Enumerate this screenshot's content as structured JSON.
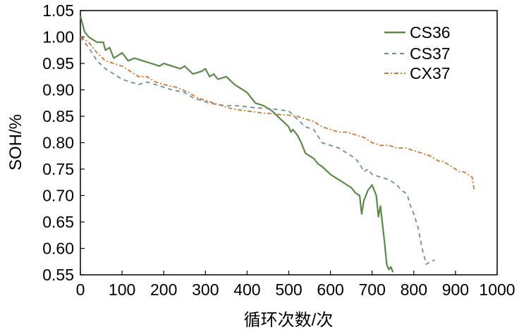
{
  "chart_data": {
    "type": "line",
    "xlabel": "循环次数/次",
    "ylabel": "SOH/%",
    "xlim": [
      0,
      1000
    ],
    "ylim": [
      0.55,
      1.05
    ],
    "x_ticks": [
      "0",
      "100",
      "200",
      "300",
      "400",
      "500",
      "600",
      "700",
      "800",
      "900",
      "1000"
    ],
    "y_ticks": [
      "0.55",
      "0.60",
      "0.65",
      "0.70",
      "0.75",
      "0.80",
      "0.85",
      "0.90",
      "0.95",
      "1.00",
      "1.05"
    ],
    "grid": false,
    "legend_position": "top-right",
    "series": [
      {
        "name": "CS36",
        "color": "#5a8a45",
        "style": "solid",
        "x": [
          0,
          10,
          20,
          40,
          55,
          60,
          70,
          80,
          90,
          100,
          115,
          130,
          150,
          170,
          190,
          200,
          220,
          240,
          250,
          270,
          290,
          300,
          310,
          320,
          330,
          350,
          370,
          380,
          400,
          420,
          440,
          460,
          480,
          500,
          505,
          510,
          520,
          530,
          540,
          550,
          560,
          570,
          580,
          600,
          610,
          620,
          640,
          650,
          660,
          670,
          675,
          680,
          690,
          700,
          710,
          715,
          720,
          730,
          735,
          740,
          745,
          750
        ],
        "y": [
          1.04,
          1.01,
          1.0,
          0.99,
          0.99,
          0.975,
          0.98,
          0.96,
          0.965,
          0.97,
          0.955,
          0.96,
          0.955,
          0.95,
          0.945,
          0.95,
          0.945,
          0.94,
          0.945,
          0.93,
          0.935,
          0.94,
          0.925,
          0.93,
          0.92,
          0.925,
          0.91,
          0.905,
          0.895,
          0.875,
          0.87,
          0.86,
          0.845,
          0.83,
          0.82,
          0.825,
          0.815,
          0.8,
          0.78,
          0.775,
          0.77,
          0.76,
          0.755,
          0.74,
          0.735,
          0.73,
          0.72,
          0.715,
          0.705,
          0.7,
          0.665,
          0.69,
          0.71,
          0.72,
          0.7,
          0.66,
          0.68,
          0.61,
          0.57,
          0.56,
          0.565,
          0.555
        ]
      },
      {
        "name": "CS37",
        "color": "#6e8e97",
        "style": "dashed",
        "x": [
          0,
          20,
          40,
          60,
          80,
          90,
          100,
          120,
          140,
          160,
          180,
          200,
          220,
          250,
          270,
          290,
          310,
          330,
          350,
          380,
          400,
          420,
          450,
          480,
          500,
          520,
          540,
          560,
          580,
          600,
          620,
          640,
          660,
          670,
          680,
          690,
          700,
          720,
          740,
          760,
          770,
          780,
          785,
          790,
          800,
          810,
          820,
          830,
          840,
          850
        ],
        "y": [
          1.0,
          0.98,
          0.955,
          0.94,
          0.93,
          0.925,
          0.92,
          0.915,
          0.91,
          0.915,
          0.91,
          0.905,
          0.9,
          0.895,
          0.885,
          0.88,
          0.875,
          0.872,
          0.87,
          0.87,
          0.868,
          0.866,
          0.865,
          0.862,
          0.86,
          0.845,
          0.83,
          0.825,
          0.8,
          0.795,
          0.79,
          0.78,
          0.77,
          0.76,
          0.745,
          0.75,
          0.74,
          0.735,
          0.73,
          0.72,
          0.71,
          0.705,
          0.7,
          0.685,
          0.665,
          0.64,
          0.6,
          0.57,
          0.575,
          0.578
        ]
      },
      {
        "name": "CX37",
        "color": "#cc7a2e",
        "style": "dashdot",
        "x": [
          0,
          20,
          40,
          60,
          80,
          100,
          120,
          140,
          160,
          180,
          200,
          230,
          260,
          280,
          300,
          320,
          340,
          360,
          380,
          400,
          420,
          440,
          460,
          480,
          500,
          520,
          540,
          560,
          580,
          600,
          620,
          640,
          660,
          680,
          700,
          720,
          740,
          760,
          780,
          800,
          820,
          840,
          850,
          860,
          870,
          880,
          890,
          900,
          910,
          920,
          930,
          940,
          945
        ],
        "y": [
          1.0,
          0.99,
          0.97,
          0.955,
          0.95,
          0.945,
          0.935,
          0.925,
          0.925,
          0.915,
          0.91,
          0.905,
          0.895,
          0.885,
          0.88,
          0.875,
          0.87,
          0.865,
          0.862,
          0.86,
          0.858,
          0.856,
          0.855,
          0.853,
          0.852,
          0.85,
          0.845,
          0.84,
          0.83,
          0.825,
          0.82,
          0.82,
          0.815,
          0.81,
          0.8,
          0.795,
          0.795,
          0.79,
          0.79,
          0.785,
          0.78,
          0.775,
          0.77,
          0.765,
          0.765,
          0.76,
          0.755,
          0.75,
          0.745,
          0.745,
          0.74,
          0.735,
          0.71
        ]
      }
    ]
  }
}
